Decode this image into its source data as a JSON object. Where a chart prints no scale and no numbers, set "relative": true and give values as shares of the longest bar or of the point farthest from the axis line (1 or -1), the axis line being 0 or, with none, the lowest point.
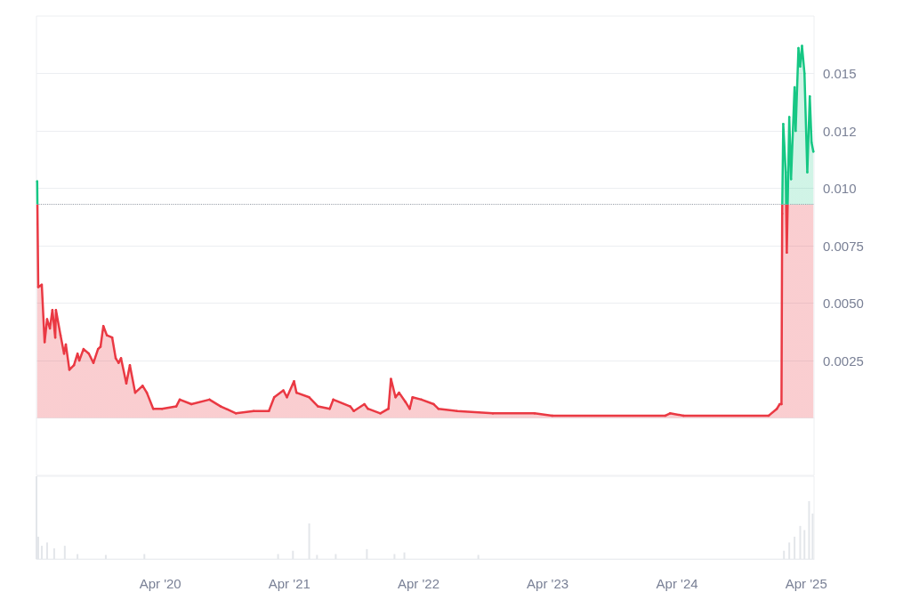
{
  "chart_data": [
    {
      "type": "area",
      "tick_labels": "y",
      "grid": "y",
      "xlim": [
        "2019-04-17",
        "2025-04-23"
      ],
      "ylim": [
        -0.0025,
        0.0175
      ],
      "yticks": [
        {
          "value": 0,
          "label": null
        },
        0.0025,
        {
          "value": 0.005,
          "label": "0.0050"
        },
        0.0075,
        {
          "value": 0.01,
          "label": "0.010"
        },
        {
          "value": 0.0125,
          "label": "0.012"
        },
        {
          "value": 0.015,
          "label": "0.015"
        }
      ],
      "ref_lines": [
        {
          "axis": "y",
          "value": 0.0093,
          "line_style": "dotted",
          "color": "#9aa0aa"
        }
      ],
      "series": [
        {
          "color": "#ea3943",
          "colors": [
            "#16c784",
            "#ea3943",
            "#ea3943",
            "#ea3943",
            "#ea3943",
            "#ea3943",
            "#ea3943",
            "#ea3943",
            "#ea3943",
            "#ea3943",
            "#ea3943",
            "#ea3943",
            "#ea3943",
            "#ea3943",
            "#ea3943",
            "#ea3943",
            "#ea3943",
            "#ea3943",
            "#ea3943",
            "#ea3943",
            "#ea3943",
            "#ea3943",
            "#ea3943",
            "#ea3943",
            "#ea3943",
            "#ea3943",
            "#ea3943",
            "#ea3943",
            "#ea3943",
            "#ea3943",
            "#ea3943",
            "#ea3943",
            "#ea3943",
            "#ea3943",
            "#ea3943",
            "#ea3943",
            "#ea3943",
            "#ea3943",
            "#ea3943",
            "#ea3943",
            "#ea3943",
            "#ea3943",
            "#ea3943",
            "#ea3943",
            "#ea3943",
            "#ea3943",
            "#ea3943",
            "#ea3943",
            "#ea3943",
            "#ea3943",
            "#ea3943",
            "#ea3943",
            "#ea3943",
            "#ea3943",
            "#ea3943",
            "#ea3943",
            "#ea3943",
            "#ea3943",
            "#ea3943",
            "#ea3943",
            "#ea3943",
            "#ea3943",
            "#ea3943",
            "#ea3943",
            "#ea3943",
            "#ea3943",
            "#ea3943",
            "#ea3943",
            "#ea3943",
            "#ea3943",
            "#ea3943",
            "#ea3943",
            "#ea3943",
            "#ea3943",
            "#ea3943",
            "#ea3943",
            "#ea3943",
            "#ea3943",
            "#16c784",
            "#16c784",
            "#ea3943",
            "#16c784",
            "#16c784",
            "#16c784",
            "#16c784",
            "#16c784",
            "#16c784",
            "#16c784",
            "#16c784",
            "#16c784",
            "#16c784",
            "#16c784",
            "#16c784"
          ],
          "x": [
            "2019-04-19",
            "2019-04-22",
            "2019-05-02",
            "2019-05-10",
            "2019-05-17",
            "2019-05-25",
            "2019-06-01",
            "2019-06-09",
            "2019-06-11",
            "2019-06-24",
            "2019-07-04",
            "2019-07-09",
            "2019-07-19",
            "2019-08-01",
            "2019-08-11",
            "2019-08-16",
            "2019-08-28",
            "2019-09-12",
            "2019-09-25",
            "2019-10-08",
            "2019-10-15",
            "2019-10-23",
            "2019-11-02",
            "2019-11-17",
            "2019-11-27",
            "2019-12-05",
            "2019-12-12",
            "2019-12-27",
            "2020-01-06",
            "2020-01-21",
            "2020-02-11",
            "2020-02-23",
            "2020-03-12",
            "2020-04-06",
            "2020-05-16",
            "2020-05-26",
            "2020-06-28",
            "2020-08-18",
            "2020-09-19",
            "2020-11-01",
            "2020-12-21",
            "2021-02-02",
            "2021-02-17",
            "2021-03-15",
            "2021-03-25",
            "2021-04-14",
            "2021-04-21",
            "2021-05-27",
            "2021-06-21",
            "2021-07-24",
            "2021-08-03",
            "2021-09-20",
            "2021-09-30",
            "2021-10-30",
            "2021-11-09",
            "2021-12-14",
            "2022-01-06",
            "2022-01-13",
            "2022-01-26",
            "2022-02-05",
            "2022-02-23",
            "2022-03-07",
            "2022-03-15",
            "2022-04-09",
            "2022-05-14",
            "2022-05-27",
            "2022-07-19",
            "2022-10-28",
            "2023-02-23",
            "2023-04-14",
            "2024-02-28",
            "2024-03-12",
            "2024-04-19",
            "2024-12-16",
            "2025-01-08",
            "2025-01-16",
            "2025-01-21",
            "2025-01-23",
            "2025-01-26",
            "2025-02-02",
            "2025-02-05",
            "2025-02-12",
            "2025-02-17",
            "2025-02-27",
            "2025-03-02",
            "2025-03-10",
            "2025-03-15",
            "2025-03-20",
            "2025-03-27",
            "2025-04-04",
            "2025-04-11",
            "2025-04-16",
            "2025-04-21"
          ],
          "values": [
            0.0103,
            0.0057,
            0.0058,
            0.0033,
            0.0043,
            0.0039,
            0.0047,
            0.0035,
            0.0047,
            0.0036,
            0.0028,
            0.0032,
            0.0021,
            0.0023,
            0.0028,
            0.0025,
            0.003,
            0.0028,
            0.0024,
            0.003,
            0.0031,
            0.004,
            0.0036,
            0.0035,
            0.0026,
            0.0024,
            0.0026,
            0.0015,
            0.0023,
            0.0011,
            0.0014,
            0.0011,
            0.0004,
            0.0004,
            0.0005,
            0.0008,
            0.0006,
            0.0008,
            0.0005,
            0.0002,
            0.0003,
            0.0003,
            0.0009,
            0.0012,
            0.0009,
            0.0016,
            0.0011,
            0.0009,
            0.0005,
            0.0004,
            0.0008,
            0.0005,
            0.0003,
            0.0006,
            0.0004,
            0.0002,
            0.0004,
            0.0017,
            0.0009,
            0.0011,
            0.0007,
            0.0004,
            0.0009,
            0.0008,
            0.0006,
            0.0004,
            0.0003,
            0.0002,
            0.0002,
            0.0001,
            0.0001,
            0.0002,
            0.0001,
            0.0001,
            0.0004,
            0.0006,
            0.0006,
            0.0089,
            0.0128,
            0.0107,
            0.0072,
            0.0131,
            0.0104,
            0.0144,
            0.0125,
            0.0161,
            0.0153,
            0.0162,
            0.015,
            0.0107,
            0.014,
            0.012,
            0.0116
          ]
        }
      ]
    },
    {
      "type": "bar",
      "relative": true,
      "tick_labels": "x",
      "xlim": [
        "2019-04-17",
        "2025-04-23"
      ],
      "xticks": [
        {
          "value": "2020-04-01",
          "label": "Apr '20"
        },
        {
          "value": "2021-04-01",
          "label": "Apr '21"
        },
        {
          "value": "2022-04-01",
          "label": "Apr '22"
        },
        {
          "value": "2023-04-01",
          "label": "Apr '23"
        },
        {
          "value": "2024-04-01",
          "label": "Apr '24"
        },
        {
          "value": "2025-04-01",
          "label": "Apr '25"
        }
      ],
      "series": [
        {
          "color": "#e3e6ea",
          "x": [
            "2019-04-17",
            "2019-04-22",
            "2019-05-02",
            "2019-05-17",
            "2019-06-06",
            "2019-07-06",
            "2019-08-11",
            "2019-10-30",
            "2020-02-16",
            "2021-02-28",
            "2021-04-11",
            "2021-05-27",
            "2021-06-18",
            "2021-08-10",
            "2021-11-06",
            "2022-01-23",
            "2022-02-20",
            "2022-09-17",
            "2025-01-28",
            "2025-02-12",
            "2025-02-27",
            "2025-03-15",
            "2025-03-27",
            "2025-04-09",
            "2025-04-19"
          ],
          "values": [
            1,
            0.27,
            0.16,
            0.2,
            0.13,
            0.16,
            0.06,
            0.05,
            0.06,
            0.06,
            0.1,
            0.43,
            0.05,
            0.06,
            0.12,
            0.06,
            0.08,
            0.05,
            0.1,
            0.2,
            0.27,
            0.4,
            0.35,
            0.7,
            0.55
          ]
        }
      ]
    }
  ]
}
